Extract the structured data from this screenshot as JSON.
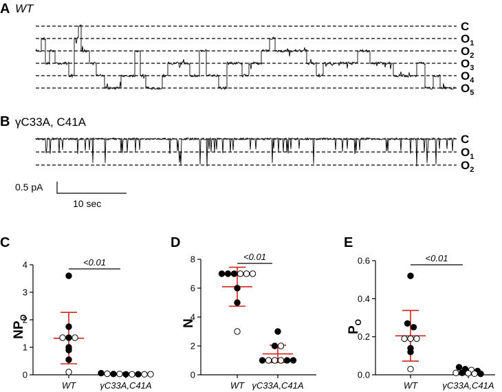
{
  "panel_a": {
    "letter": "A",
    "label": "WT",
    "states": [
      {
        "main": "C",
        "sub": ""
      },
      {
        "main": "O",
        "sub": "1"
      },
      {
        "main": "O",
        "sub": "2"
      },
      {
        "main": "O",
        "sub": "3"
      },
      {
        "main": "O",
        "sub": "4"
      },
      {
        "main": "O",
        "sub": "5"
      }
    ]
  },
  "panel_b": {
    "letter": "B",
    "label": "γC33A, C41A",
    "states": [
      {
        "main": "C",
        "sub": ""
      },
      {
        "main": "O",
        "sub": "1"
      },
      {
        "main": "O",
        "sub": "2"
      }
    ]
  },
  "scale_bar": {
    "current_label": "0.5 pA",
    "time_label": "10 sec"
  },
  "colors": {
    "error_bar": "#d0201c",
    "axis": "#000000"
  },
  "chart_data": [
    {
      "id": "C",
      "type": "scatter",
      "letter": "C",
      "ylabel_main": "NP",
      "ylabel_sub": "O",
      "ylim": [
        0,
        4
      ],
      "yticks": [
        0,
        1,
        2,
        3,
        4
      ],
      "ytick_labels": [
        "0",
        "1",
        "2",
        "3",
        "4"
      ],
      "categories": [
        "WT",
        "γC33A,C41A"
      ],
      "p_label": "<0.01",
      "series": [
        {
          "name": "WT",
          "mean": 1.33,
          "sd_low": 0.4,
          "sd_high": 2.27,
          "points": [
            {
              "y": 3.6,
              "filled": true
            },
            {
              "y": 1.75,
              "filled": true
            },
            {
              "y": 1.35,
              "filled": false
            },
            {
              "y": 1.35,
              "filled": true
            },
            {
              "y": 1.35,
              "filled": false
            },
            {
              "y": 1.0,
              "filled": true
            },
            {
              "y": 0.9,
              "filled": true
            },
            {
              "y": 0.55,
              "filled": true
            },
            {
              "y": 0.1,
              "filled": false
            }
          ]
        },
        {
          "name": "γC33A,C41A",
          "mean": 0.04,
          "sd_low": 0.01,
          "sd_high": 0.07,
          "points": [
            {
              "y": 0.06,
              "filled": true
            },
            {
              "y": 0.04,
              "filled": false
            },
            {
              "y": 0.03,
              "filled": true
            },
            {
              "y": 0.03,
              "filled": false
            },
            {
              "y": 0.02,
              "filled": true
            },
            {
              "y": 0.02,
              "filled": false
            },
            {
              "y": 0.02,
              "filled": true
            },
            {
              "y": 0.02,
              "filled": false
            },
            {
              "y": 0.02,
              "filled": false
            }
          ]
        }
      ]
    },
    {
      "id": "D",
      "type": "scatter",
      "letter": "D",
      "ylabel_main": "N",
      "ylabel_sub": "",
      "ylim": [
        0,
        8
      ],
      "yticks": [
        0,
        2,
        4,
        6,
        8
      ],
      "ytick_labels": [
        "0",
        "2",
        "4",
        "6",
        "8"
      ],
      "categories": [
        "WT",
        "γC33A,C41A"
      ],
      "p_label": "<0.01",
      "series": [
        {
          "name": "WT",
          "mean": 6.1,
          "sd_low": 4.75,
          "sd_high": 7.45,
          "points": [
            {
              "y": 7,
              "filled": true
            },
            {
              "y": 7,
              "filled": true
            },
            {
              "y": 7,
              "filled": true
            },
            {
              "y": 7,
              "filled": false
            },
            {
              "y": 7,
              "filled": false
            },
            {
              "y": 7,
              "filled": false
            },
            {
              "y": 6,
              "filled": true
            },
            {
              "y": 5,
              "filled": true
            },
            {
              "y": 3,
              "filled": false
            }
          ]
        },
        {
          "name": "γC33A,C41A",
          "mean": 1.45,
          "sd_low": 0.85,
          "sd_high": 2.05,
          "points": [
            {
              "y": 3,
              "filled": true
            },
            {
              "y": 2,
              "filled": true
            },
            {
              "y": 2,
              "filled": false
            },
            {
              "y": 1,
              "filled": true
            },
            {
              "y": 1,
              "filled": false
            },
            {
              "y": 1,
              "filled": false
            },
            {
              "y": 1,
              "filled": false
            },
            {
              "y": 1,
              "filled": true
            },
            {
              "y": 1,
              "filled": true
            }
          ]
        }
      ]
    },
    {
      "id": "E",
      "type": "scatter",
      "letter": "E",
      "ylabel_main": "P",
      "ylabel_sub": "O",
      "ylim": [
        0,
        0.6
      ],
      "yticks": [
        0,
        0.2,
        0.4,
        0.6
      ],
      "ytick_labels": [
        "0.0",
        "0.2",
        "0.4",
        "0.6"
      ],
      "categories": [
        "WT",
        "γC33A,C41A"
      ],
      "p_label": "<0.01",
      "series": [
        {
          "name": "WT",
          "mean": 0.205,
          "sd_low": 0.072,
          "sd_high": 0.338,
          "points": [
            {
              "y": 0.52,
              "filled": true
            },
            {
              "y": 0.27,
              "filled": true
            },
            {
              "y": 0.25,
              "filled": true
            },
            {
              "y": 0.19,
              "filled": false
            },
            {
              "y": 0.19,
              "filled": false
            },
            {
              "y": 0.19,
              "filled": false
            },
            {
              "y": 0.14,
              "filled": true
            },
            {
              "y": 0.12,
              "filled": true
            },
            {
              "y": 0.03,
              "filled": false
            }
          ]
        },
        {
          "name": "γC33A,C41A",
          "mean": 0.012,
          "sd_low": 0.002,
          "sd_high": 0.024,
          "points": [
            {
              "y": 0.04,
              "filled": true
            },
            {
              "y": 0.03,
              "filled": true
            },
            {
              "y": 0.025,
              "filled": false
            },
            {
              "y": 0.02,
              "filled": true
            },
            {
              "y": 0.01,
              "filled": false
            },
            {
              "y": 0.01,
              "filled": true
            },
            {
              "y": 0.008,
              "filled": false
            },
            {
              "y": 0.006,
              "filled": false
            },
            {
              "y": 0.005,
              "filled": true
            }
          ]
        }
      ]
    }
  ]
}
